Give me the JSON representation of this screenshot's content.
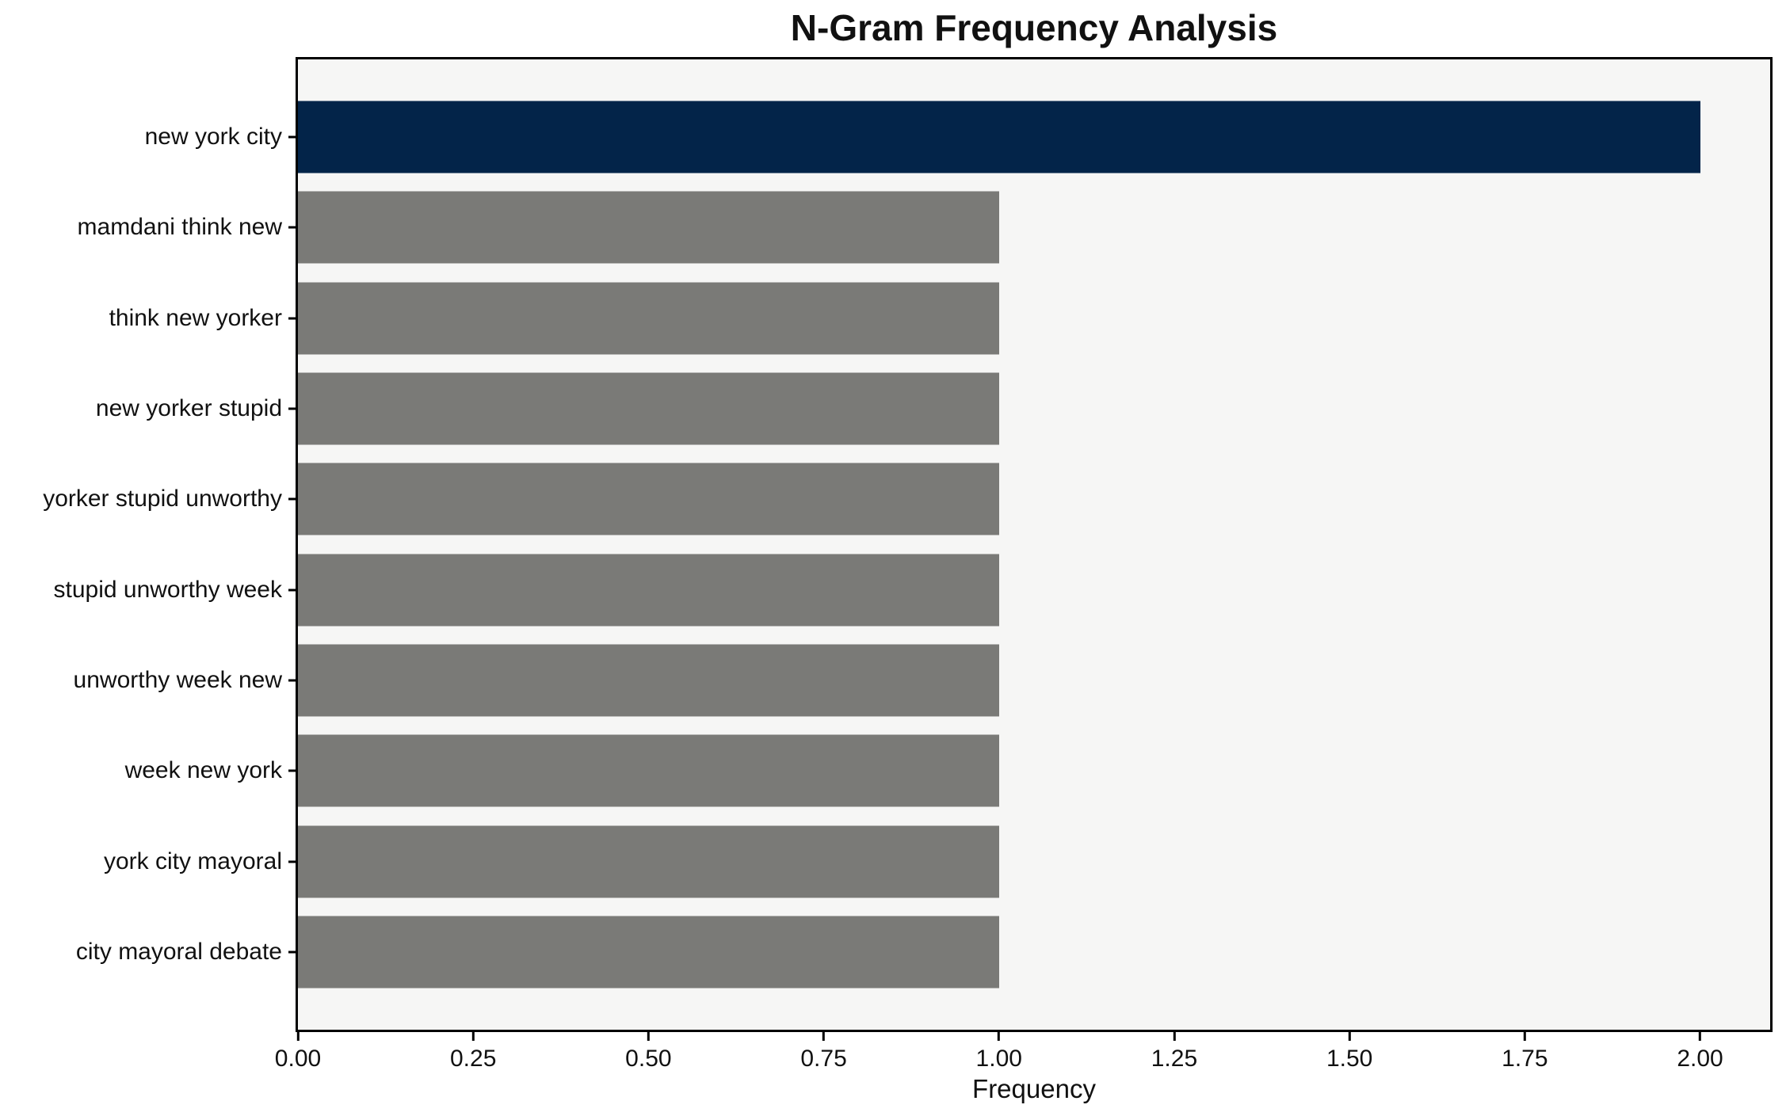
{
  "chart_data": {
    "type": "bar",
    "orientation": "horizontal",
    "title": "N-Gram Frequency Analysis",
    "xlabel": "Frequency",
    "categories": [
      "new york city",
      "mamdani think new",
      "think new yorker",
      "new yorker stupid",
      "yorker stupid unworthy",
      "stupid unworthy week",
      "unworthy week new",
      "week new york",
      "york city mayoral",
      "city mayoral debate"
    ],
    "values": [
      2,
      1,
      1,
      1,
      1,
      1,
      1,
      1,
      1,
      1
    ],
    "xlim": [
      0,
      2.1
    ],
    "x_ticks": [
      0,
      0.25,
      0.5,
      0.75,
      1.0,
      1.25,
      1.5,
      1.75,
      2.0
    ],
    "x_tick_labels": [
      "0.00",
      "0.25",
      "0.50",
      "0.75",
      "1.00",
      "1.25",
      "1.50",
      "1.75",
      "2.00"
    ],
    "grid": false,
    "legend": false,
    "highlight_index": 0,
    "colors": {
      "highlight_bar": "#032449",
      "default_bar": "#7a7a77",
      "plot_background": "#f6f6f5",
      "figure_background": "#ffffff",
      "axis_border": "#000000"
    }
  }
}
